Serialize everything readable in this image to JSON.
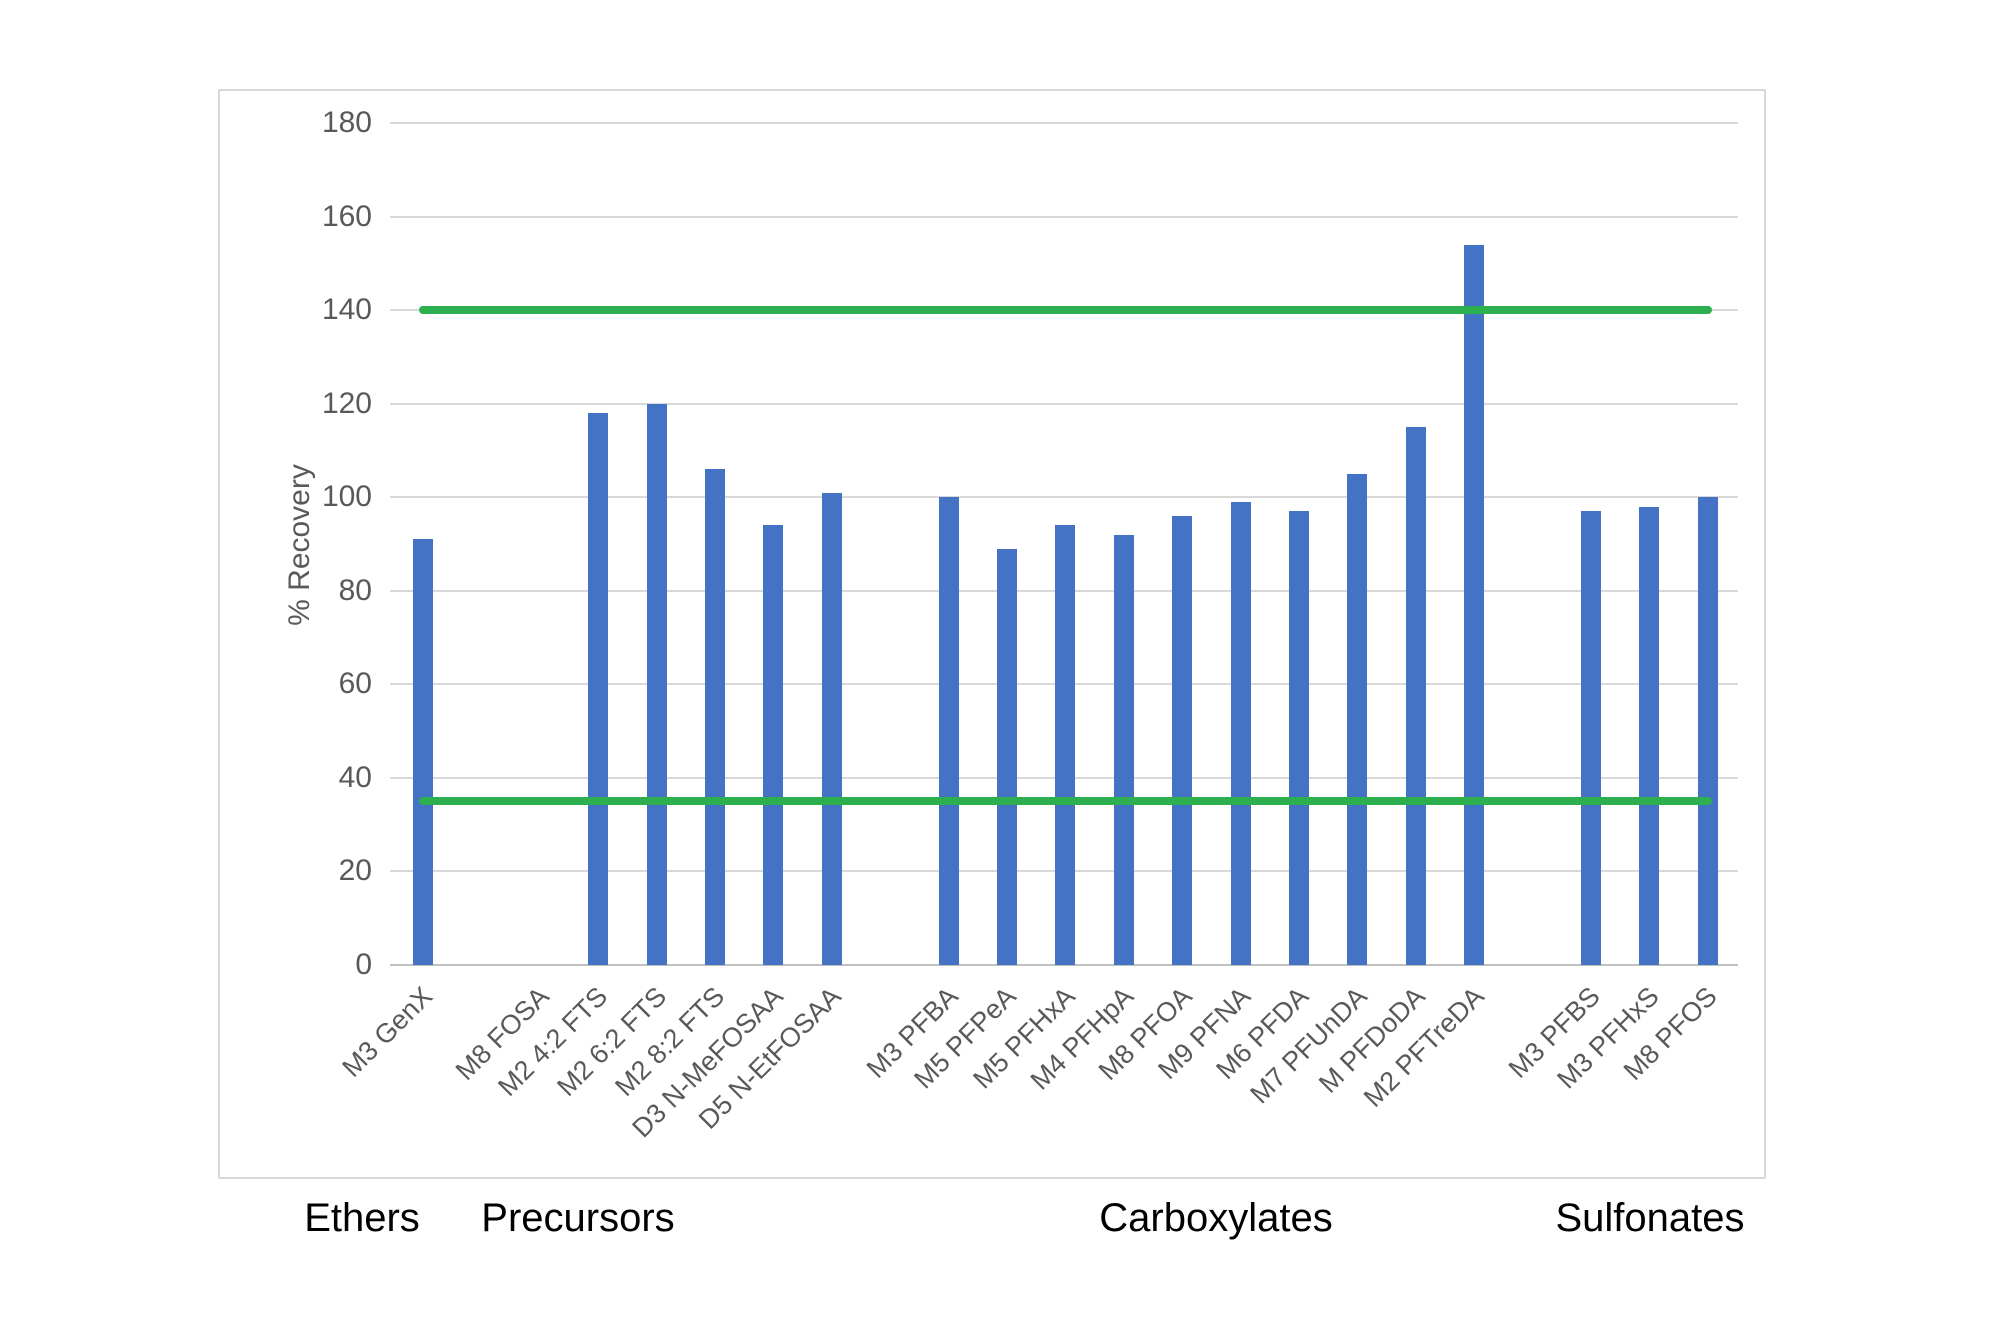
{
  "chart_data": {
    "type": "bar",
    "title": "",
    "ylabel": "% Recovery",
    "ylim": [
      0,
      180
    ],
    "ytick_step": 20,
    "yticks": [
      0,
      20,
      40,
      60,
      80,
      100,
      120,
      140,
      160,
      180
    ],
    "grid": true,
    "legend": "none",
    "bar_color": "#4472C4",
    "gridline_color": "#d9d9d9",
    "axis_line_color": "#bfbfbf",
    "axis_text_color": "#595959",
    "reference_line_color": "#2daf50",
    "reference_lines": [
      {
        "name": "upper-recovery-limit",
        "value": 140
      },
      {
        "name": "lower-recovery-limit",
        "value": 35
      }
    ],
    "groups": [
      {
        "label": "Ethers",
        "categories": [
          "M3 GenX"
        ],
        "values": [
          91
        ]
      },
      {
        "label": "Precursors",
        "categories": [
          "M8 FOSA",
          "M2 4:2 FTS",
          "M2 6:2 FTS",
          "M2 8:2 FTS",
          "D3 N-MeFOSAA",
          "D5 N-EtFOSAA"
        ],
        "values": [
          0,
          118,
          120,
          106,
          94,
          101
        ]
      },
      {
        "label": "Carboxylates",
        "categories": [
          "M3 PFBA",
          "M5 PFPeA",
          "M5 PFHxA",
          "M4 PFHpA",
          "M8 PFOA",
          "M9 PFNA",
          "M6 PFDA",
          "M7 PFUnDA",
          "M PFDoDA",
          "M2 PFTreDA"
        ],
        "values": [
          100,
          89,
          94,
          92,
          96,
          99,
          97,
          105,
          115,
          154
        ]
      },
      {
        "label": "Sulfonates",
        "categories": [
          "M3 PFBS",
          "M3 PFHxS",
          "M8 PFOS"
        ],
        "values": [
          97,
          98,
          100
        ]
      }
    ]
  }
}
